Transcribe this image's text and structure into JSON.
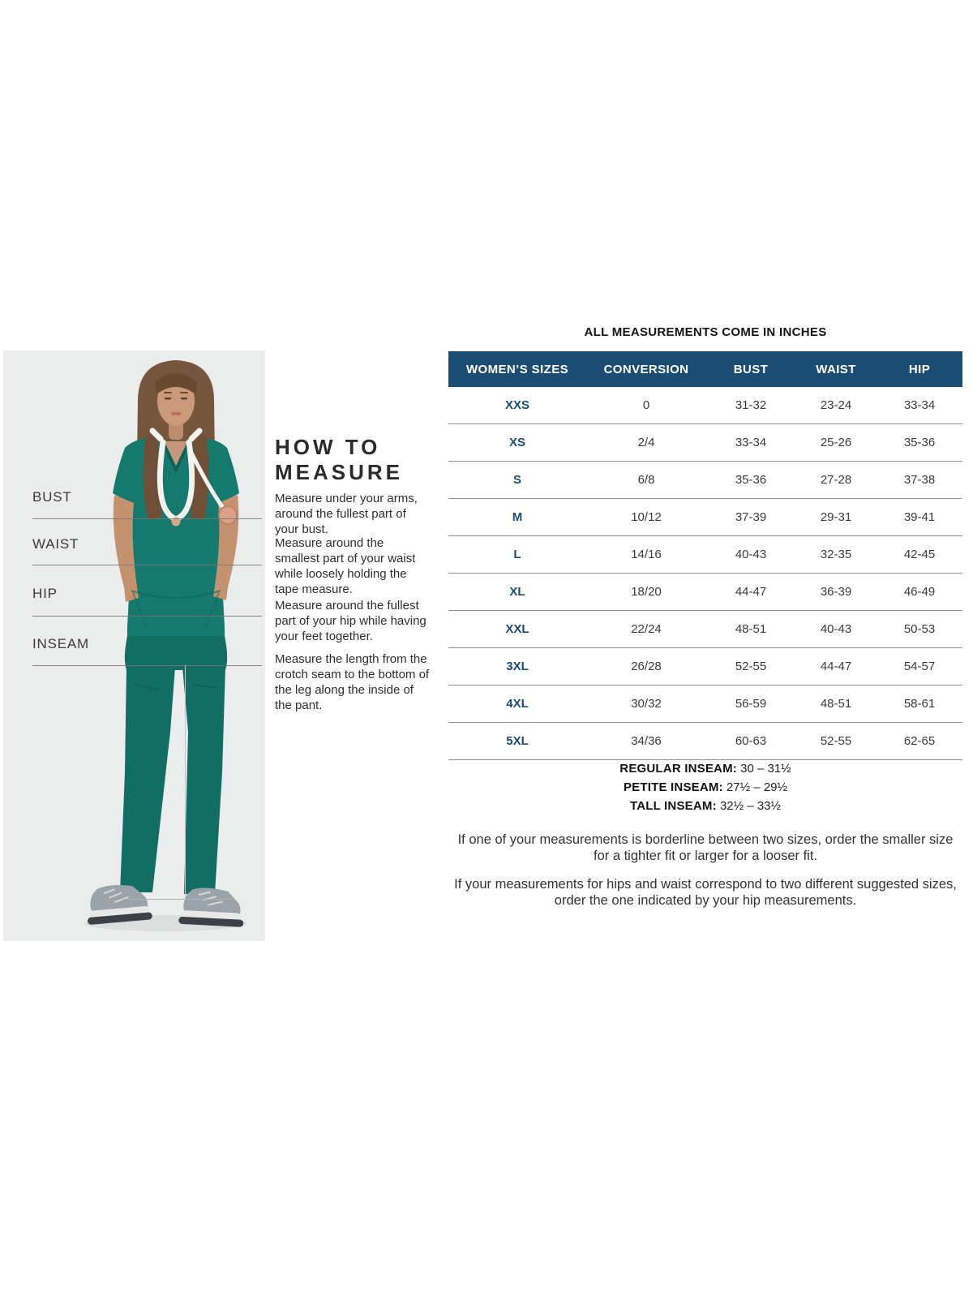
{
  "measure": {
    "heading_line1": "HOW TO",
    "heading_line2": "MEASURE",
    "items": [
      {
        "label": "BUST",
        "desc": "Measure under your arms, around the fullest part of your bust."
      },
      {
        "label": "WAIST",
        "desc": "Measure around the smallest part of your waist while loosely holding the tape measure."
      },
      {
        "label": "HIP",
        "desc": "Measure around the fullest part of your hip while having your feet together."
      },
      {
        "label": "INSEAM",
        "desc": "Measure the length from the crotch seam to the bottom of the leg along the inside of the pant."
      }
    ]
  },
  "table": {
    "title": "ALL MEASUREMENTS COME IN INCHES",
    "columns": [
      "WOMEN’S SIZES",
      "CONVERSION",
      "BUST",
      "WAIST",
      "HIP"
    ],
    "rows": [
      {
        "size": "XXS",
        "conversion": "0",
        "bust": "31-32",
        "waist": "23-24",
        "hip": "33-34"
      },
      {
        "size": "XS",
        "conversion": "2/4",
        "bust": "33-34",
        "waist": "25-26",
        "hip": "35-36"
      },
      {
        "size": "S",
        "conversion": "6/8",
        "bust": "35-36",
        "waist": "27-28",
        "hip": "37-38"
      },
      {
        "size": "M",
        "conversion": "10/12",
        "bust": "37-39",
        "waist": "29-31",
        "hip": "39-41"
      },
      {
        "size": "L",
        "conversion": "14/16",
        "bust": "40-43",
        "waist": "32-35",
        "hip": "42-45"
      },
      {
        "size": "XL",
        "conversion": "18/20",
        "bust": "44-47",
        "waist": "36-39",
        "hip": "46-49"
      },
      {
        "size": "XXL",
        "conversion": "22/24",
        "bust": "48-51",
        "waist": "40-43",
        "hip": "50-53"
      },
      {
        "size": "3XL",
        "conversion": "26/28",
        "bust": "52-55",
        "waist": "44-47",
        "hip": "54-57"
      },
      {
        "size": "4XL",
        "conversion": "30/32",
        "bust": "56-59",
        "waist": "48-51",
        "hip": "58-61"
      },
      {
        "size": "5XL",
        "conversion": "34/36",
        "bust": "60-63",
        "waist": "52-55",
        "hip": "62-65"
      }
    ]
  },
  "inseam_notes": [
    {
      "label": "REGULAR INSEAM:",
      "value": "30 – 31½"
    },
    {
      "label": "PETITE INSEAM:",
      "value": "27½ – 29½"
    },
    {
      "label": "TALL INSEAM:",
      "value": "32½ – 33½"
    }
  ],
  "footnotes": [
    "If one of your measurements is borderline between two sizes, order the smaller size for a tighter fit or larger for a looser fit.",
    "If your measurements for hips and waist correspond to two different suggested sizes, order the one indicated by your hip measurements."
  ],
  "colors": {
    "table_header_bg": "#1b4c74",
    "size_text": "#1b4c74",
    "scrub_teal_top": "#16796e",
    "scrub_teal_pants": "#126e63",
    "photo_background": "#ebecec"
  }
}
